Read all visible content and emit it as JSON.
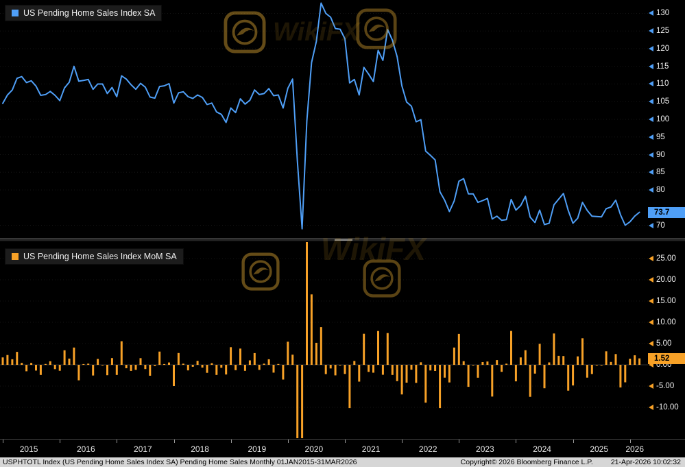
{
  "watermark": {
    "text": "WikiFX"
  },
  "panels": {
    "top": {
      "legend": "US Pending Home Sales Index SA",
      "last_value": "73.7",
      "accent": "#4f9ff7"
    },
    "bottom": {
      "legend": "US Pending Home Sales Index MoM SA",
      "last_value": "1.52",
      "accent": "#f7a127"
    }
  },
  "x_axis": {
    "years": [
      "2015",
      "2016",
      "2017",
      "2018",
      "2019",
      "2020",
      "2021",
      "2022",
      "2023",
      "2024",
      "2025",
      "2026"
    ]
  },
  "status_bar": {
    "left": "USPHTOTL Index (US Pending Home Sales Index SA) Pending Home Sales Monthly 01JAN2015-31MAR2026",
    "center": "Copyright© 2026 Bloomberg Finance L.P.",
    "right": "21-Apr-2026 10:02:32"
  },
  "chart_data": [
    {
      "type": "line",
      "title": "US Pending Home Sales Index SA",
      "x_start": "2015-01",
      "x_end": "2026-03",
      "frequency": "monthly",
      "ylim": [
        67,
        133
      ],
      "y_ticks": [
        "130",
        "125",
        "120",
        "115",
        "110",
        "105",
        "100",
        "95",
        "90",
        "85",
        "80",
        "70"
      ],
      "hidden_tick_behind_badge": "75",
      "last_value": 73.7,
      "color": "#4f9ff7",
      "grid": "faint-dotted",
      "legend_position": "top-left",
      "values": [
        104.5,
        106.9,
        108.3,
        111.6,
        112.1,
        110.4,
        110.9,
        109.4,
        106.8,
        107.0,
        107.9,
        106.8,
        105.3,
        108.9,
        110.5,
        115.0,
        110.8,
        111.0,
        111.3,
        108.5,
        110.0,
        110.0,
        107.3,
        109.0,
        106.4,
        112.3,
        111.4,
        109.8,
        108.5,
        110.2,
        109.1,
        106.3,
        106.0,
        109.3,
        109.5,
        110.1,
        104.6,
        107.5,
        107.8,
        106.4,
        105.9,
        106.9,
        106.2,
        104.2,
        104.6,
        102.1,
        101.4,
        99.1,
        103.2,
        101.9,
        105.8,
        104.3,
        105.4,
        108.3,
        107.0,
        107.3,
        108.7,
        106.7,
        106.9,
        103.2,
        108.8,
        111.4,
        88.2,
        69.0,
        99.6,
        116.1,
        122.1,
        132.9,
        130.0,
        128.9,
        125.7,
        125.5,
        122.8,
        110.3,
        111.3,
        106.9,
        114.7,
        112.8,
        110.7,
        119.5,
        116.7,
        125.4,
        122.4,
        117.7,
        109.5,
        104.9,
        103.7,
        99.3,
        99.9,
        91.0,
        89.8,
        88.5,
        79.5,
        77.1,
        73.9,
        76.9,
        82.5,
        83.2,
        78.9,
        78.9,
        76.5,
        77.0,
        77.6,
        71.8,
        72.6,
        71.4,
        71.6,
        77.3,
        74.3,
        75.6,
        78.2,
        72.3,
        70.8,
        74.3,
        70.2,
        70.6,
        75.8,
        77.4,
        79.0,
        74.2,
        70.6,
        72.0,
        76.5,
        74.2,
        72.6,
        72.5,
        72.4,
        74.7,
        75.2,
        77.1,
        73.0,
        70.0,
        71.0,
        72.6,
        73.7
      ]
    },
    {
      "type": "bar",
      "title": "US Pending Home Sales Index MoM SA",
      "x_start": "2015-01",
      "x_end": "2026-03",
      "frequency": "monthly",
      "ylim": [
        -17,
        29
      ],
      "y_ticks": [
        "25.00",
        "20.00",
        "15.00",
        "10.00",
        "5.00",
        "0.00",
        "-5.00",
        "-10.00"
      ],
      "last_value": 1.52,
      "color": "#f7a127",
      "grid": "faint-dotted",
      "legend_position": "top-left",
      "clipped_bars_note": "May-2020 spike and Mar/Apr-2020 drops clip at panel edges",
      "values": [
        1.75,
        2.3,
        1.31,
        3.05,
        0.45,
        -1.52,
        0.45,
        -1.35,
        -2.38,
        0.19,
        0.84,
        -1.02,
        -1.4,
        3.42,
        1.47,
        4.07,
        -3.65,
        0.18,
        0.27,
        -2.52,
        1.38,
        0.0,
        -2.45,
        1.58,
        -2.39,
        5.55,
        -0.8,
        -1.44,
        -1.18,
        1.57,
        -1.0,
        -2.57,
        -0.28,
        3.11,
        0.18,
        0.55,
        -5.0,
        2.77,
        0.28,
        -1.3,
        -0.47,
        0.94,
        -0.65,
        -1.88,
        0.38,
        -2.39,
        -0.69,
        -2.27,
        4.14,
        -1.26,
        3.83,
        -1.42,
        1.05,
        2.75,
        -1.2,
        0.28,
        1.3,
        -1.84,
        0.19,
        -3.46,
        5.43,
        2.39,
        -20.82,
        -21.77,
        44.35,
        16.57,
        5.17,
        8.85,
        -2.18,
        -0.85,
        -2.48,
        -0.16,
        -2.15,
        -10.18,
        0.91,
        -3.95,
        7.3,
        -1.66,
        -1.86,
        7.95,
        -2.34,
        7.46,
        -2.39,
        -3.84,
        -6.97,
        -4.2,
        -1.14,
        -4.24,
        0.6,
        -8.91,
        -1.32,
        -1.45,
        -10.17,
        -3.02,
        -4.15,
        4.06,
        7.28,
        0.85,
        -5.17,
        0.0,
        -3.04,
        0.65,
        0.78,
        -7.47,
        1.11,
        -1.65,
        0.28,
        7.96,
        -3.88,
        1.75,
        3.44,
        -7.54,
        -2.07,
        4.94,
        -5.52,
        0.57,
        7.37,
        2.11,
        2.07,
        -6.08,
        -4.85,
        1.98,
        6.25,
        -3.01,
        -2.16,
        -0.14,
        -0.14,
        3.18,
        0.67,
        2.53,
        -5.32,
        -4.11,
        1.43,
        2.25,
        1.52
      ]
    }
  ]
}
